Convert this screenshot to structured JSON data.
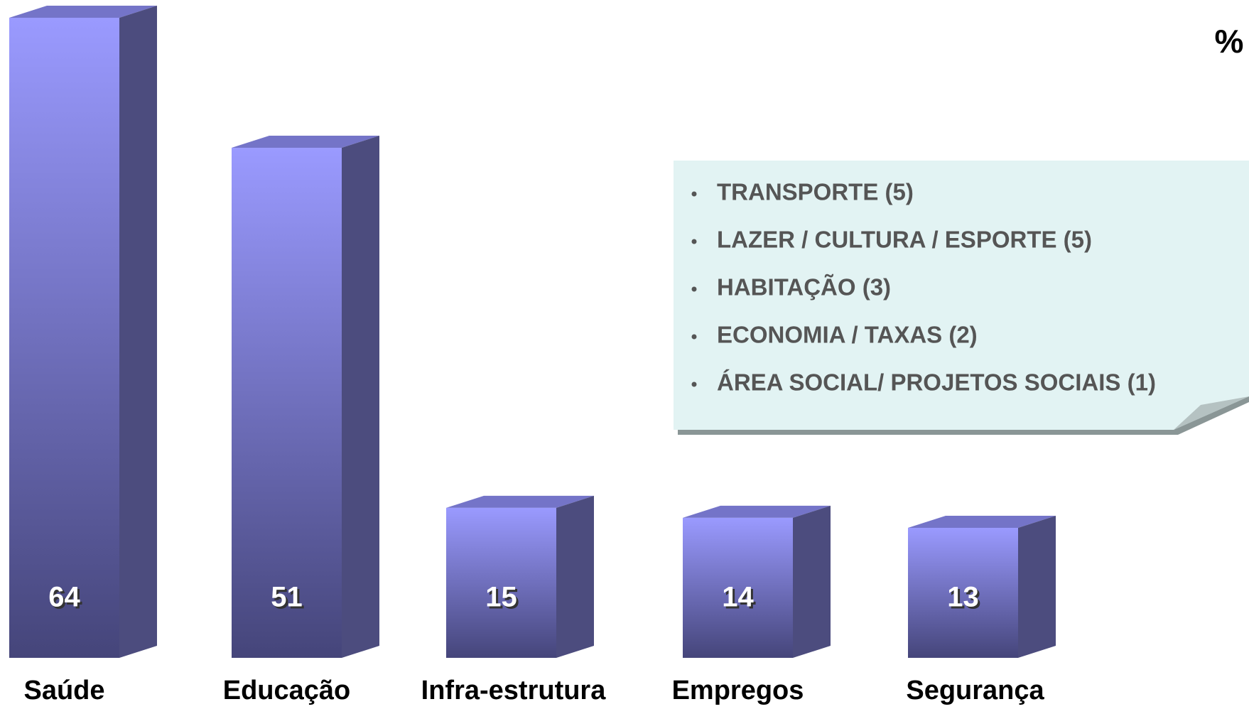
{
  "chart_data": {
    "type": "bar",
    "categories": [
      "Saúde",
      "Educação",
      "Infra-estrutura",
      "Empregos",
      "Segurança"
    ],
    "values": [
      64,
      51,
      15,
      14,
      13
    ],
    "color": "#9999ff",
    "unit_label": "%",
    "note_items": [
      "TRANSPORTE (5)",
      "LAZER / CULTURA / ESPORTE (5)",
      "HABITAÇÃO (3)",
      "ECONOMIA / TAXAS (2)",
      "ÁREA SOCIAL/ PROJETOS SOCIAIS (1)"
    ]
  }
}
